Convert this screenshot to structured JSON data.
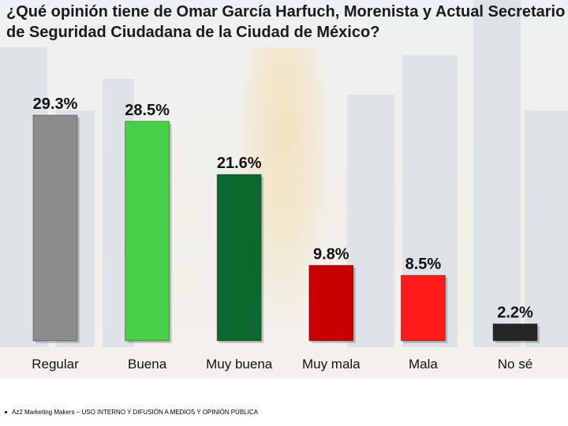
{
  "title": "¿Qué opinión tiene de Omar García Harfuch, Morenista y Actual Secretario de Seguridad Ciudadana de la Ciudad de México?",
  "footer": "Az2 Marketing Makers – USO INTERNO Y DIFUSIÓN A MEDIOS Y OPINIÓN PÚBLICA",
  "chart_data": {
    "type": "bar",
    "title": "¿Qué opinión tiene de Omar García Harfuch, Morenista y Actual Secretario de Seguridad Ciudadana de la Ciudad de México?",
    "categories": [
      "Regular",
      "Buena",
      "Muy buena",
      "Muy mala",
      "Mala",
      "No sé"
    ],
    "values": [
      29.3,
      28.5,
      21.6,
      9.8,
      8.5,
      2.2
    ],
    "value_labels": [
      "29.3%",
      "28.5%",
      "21.6%",
      "9.8%",
      "8.5%",
      "2.2%"
    ],
    "colors": [
      "#8c8c8c",
      "#46d046",
      "#0a6a2e",
      "#c80000",
      "#ff1a1a",
      "#262626"
    ],
    "ylim": [
      0,
      29.3
    ],
    "grid": false,
    "legend": "none"
  }
}
